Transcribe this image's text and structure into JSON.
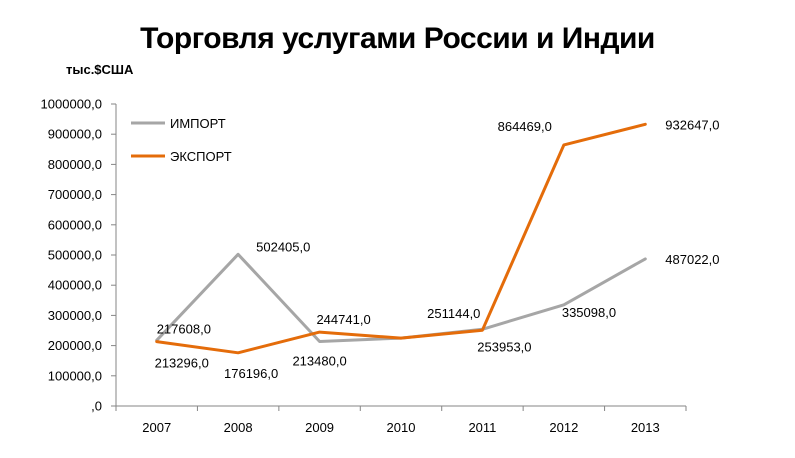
{
  "chart_data": {
    "type": "line",
    "title": "Торговля услугами России и Индии",
    "unit_label": "тыс.$США",
    "categories": [
      "2007",
      "2008",
      "2009",
      "2010",
      "2011",
      "2012",
      "2013"
    ],
    "ylim": [
      0,
      1000000
    ],
    "yticks": [
      {
        "value": 0,
        "label": ",0"
      },
      {
        "value": 100000,
        "label": "100000,0"
      },
      {
        "value": 200000,
        "label": "200000,0"
      },
      {
        "value": 300000,
        "label": "300000,0"
      },
      {
        "value": 400000,
        "label": "400000,0"
      },
      {
        "value": 500000,
        "label": "500000,0"
      },
      {
        "value": 600000,
        "label": "600000,0"
      },
      {
        "value": 700000,
        "label": "700000,0"
      },
      {
        "value": 800000,
        "label": "800000,0"
      },
      {
        "value": 900000,
        "label": "900000,0"
      },
      {
        "value": 1000000,
        "label": "1000000,0"
      }
    ],
    "grid": false,
    "legend_position": "top-left",
    "series": [
      {
        "name": "ИМПОРТ",
        "color": "#a6a6a6",
        "values": [
          217608,
          502405,
          213480,
          225000,
          253953,
          335098,
          487022
        ],
        "labels": [
          "217608,0",
          "502405,0",
          "213480,0",
          null,
          "253953,0",
          "335098,0",
          "487022,0"
        ]
      },
      {
        "name": "ЭКСПОРТ",
        "color": "#e46c0a",
        "values": [
          213296,
          176196,
          244741,
          225000,
          251144,
          864469,
          932647
        ],
        "labels": [
          "213296,0",
          "176196,0",
          "244741,0",
          null,
          "251144,0",
          "864469,0",
          "932647,0"
        ]
      }
    ]
  }
}
